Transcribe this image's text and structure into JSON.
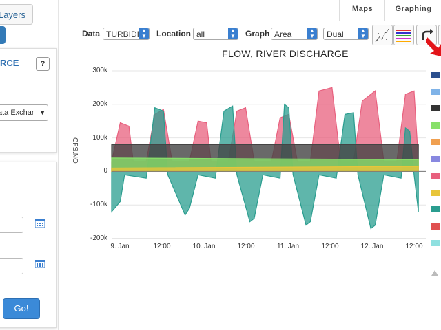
{
  "left_panel": {
    "layers_label": "Layers",
    "source_title": "RCE",
    "help_label": "?",
    "exchange_value": "ata Exchar",
    "go_label": "Go!"
  },
  "tabs": [
    {
      "label": "Maps"
    },
    {
      "label": "Graphing"
    }
  ],
  "toolbar": {
    "data_label": "Data",
    "data_value": "TURBIDI",
    "location_label": "Location",
    "location_value": "all",
    "graph_label": "Graph",
    "graph_type_value": "Area",
    "axis_mode_value": "Dual"
  },
  "chart_data": {
    "type": "area",
    "title": "FLOW, RIVER DISCHARGE",
    "ylabel": "CFS.NO",
    "ylim": [
      -200000,
      300000
    ],
    "yticks": [
      "300k",
      "200k",
      "100k",
      "0",
      "-100k",
      "-200k"
    ],
    "xticks": [
      "9. Jan",
      "12:00",
      "10. Jan",
      "12:00",
      "11. Jan",
      "12:00",
      "12. Jan",
      "12:00"
    ],
    "x_range_hours": [
      0,
      84
    ],
    "series": [
      {
        "color": "#e8607e",
        "values": [
          [
            0,
            30000
          ],
          [
            2,
            145000
          ],
          [
            4,
            135000
          ],
          [
            5,
            30000
          ],
          [
            8,
            30000
          ],
          [
            10,
            170000
          ],
          [
            12,
            185000
          ],
          [
            14,
            30000
          ],
          [
            18,
            30000
          ],
          [
            20,
            150000
          ],
          [
            22,
            145000
          ],
          [
            23,
            30000
          ],
          [
            27,
            30000
          ],
          [
            29,
            180000
          ],
          [
            31,
            190000
          ],
          [
            33,
            30000
          ],
          [
            37,
            30000
          ],
          [
            39,
            160000
          ],
          [
            41,
            170000
          ],
          [
            43,
            30000
          ],
          [
            46,
            30000
          ],
          [
            48,
            240000
          ],
          [
            51,
            250000
          ],
          [
            53,
            30000
          ],
          [
            56,
            30000
          ],
          [
            58,
            210000
          ],
          [
            61,
            240000
          ],
          [
            63,
            30000
          ],
          [
            66,
            30000
          ],
          [
            68,
            230000
          ],
          [
            70,
            240000
          ],
          [
            71,
            30000
          ]
        ]
      },
      {
        "color": "#2a9d8f",
        "values": [
          [
            0,
            -120000
          ],
          [
            2,
            -90000
          ],
          [
            3,
            -10000
          ],
          [
            8,
            -20000
          ],
          [
            10,
            190000
          ],
          [
            12,
            180000
          ],
          [
            13,
            -10000
          ],
          [
            17,
            -130000
          ],
          [
            18,
            -110000
          ],
          [
            20,
            -10000
          ],
          [
            24,
            -20000
          ],
          [
            26,
            180000
          ],
          [
            28,
            195000
          ],
          [
            29,
            -10000
          ],
          [
            32,
            -150000
          ],
          [
            33,
            -140000
          ],
          [
            35,
            -10000
          ],
          [
            39,
            -20000
          ],
          [
            40,
            200000
          ],
          [
            41,
            190000
          ],
          [
            42,
            -10000
          ],
          [
            45,
            -160000
          ],
          [
            46,
            -150000
          ],
          [
            48,
            -10000
          ],
          [
            52,
            -20000
          ],
          [
            54,
            170000
          ],
          [
            56,
            175000
          ],
          [
            57,
            -10000
          ],
          [
            60,
            -170000
          ],
          [
            61,
            -160000
          ],
          [
            63,
            -10000
          ],
          [
            67,
            -20000
          ],
          [
            68,
            130000
          ],
          [
            69,
            120000
          ],
          [
            70,
            -10000
          ],
          [
            71,
            -120000
          ]
        ]
      },
      {
        "color": "#444444",
        "values": [
          [
            0,
            80000
          ],
          [
            71,
            80000
          ]
        ]
      },
      {
        "color": "#88e06a",
        "values": [
          [
            0,
            40000
          ],
          [
            71,
            35000
          ]
        ]
      },
      {
        "color": "#e8c53a",
        "values": [
          [
            0,
            10000
          ],
          [
            71,
            15000
          ]
        ]
      }
    ],
    "legend_colors": [
      "#2b4f8e",
      "#7fb3e8",
      "#333333",
      "#88e06a",
      "#f0a050",
      "#8888e0",
      "#e8607e",
      "#e8c53a",
      "#2a9d8f",
      "#e05050",
      "#8fe0e0"
    ]
  }
}
